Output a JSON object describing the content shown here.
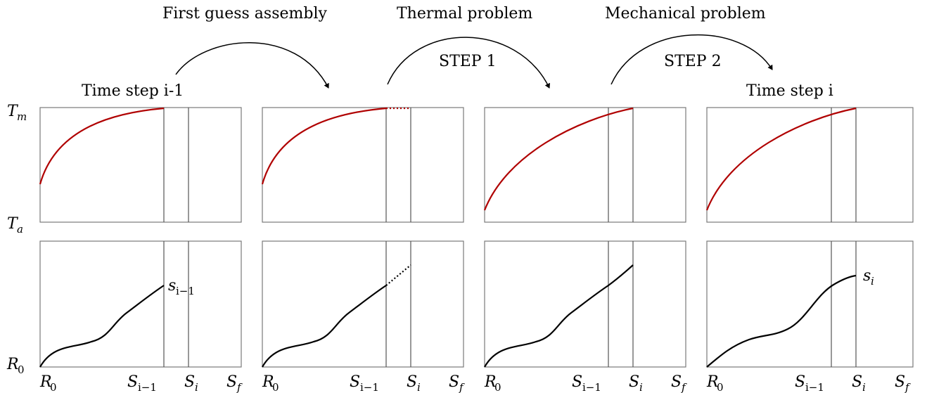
{
  "steps": {
    "first_guess": "First guess assembly",
    "thermal": "Thermal problem",
    "mechanical": "Mechanical problem",
    "step1": "STEP 1",
    "step2": "STEP 2"
  },
  "time_prev": "Time step i-1",
  "time_curr": "Time step i",
  "y_labels": {
    "tm_base": "T",
    "tm_sub": "m",
    "ta_base": "T",
    "ta_sub": "a",
    "r0_base": "R",
    "r0_sub": "0"
  },
  "x_labels": {
    "r0_base": "R",
    "r0_sub": "0",
    "sprev_base": "S",
    "sprev_sub": "i−1",
    "si_base": "S",
    "si_sub": "i",
    "sf_base": "S",
    "sf_sub": "f"
  },
  "annotations": {
    "s_prev_base": "s",
    "s_prev_sub": "i−1",
    "s_curr_base": "s",
    "s_curr_sub": "i"
  },
  "colors": {
    "temperature_curve": "#b00000",
    "radius_curve": "#000000",
    "frame": "#7a7a7a"
  }
}
